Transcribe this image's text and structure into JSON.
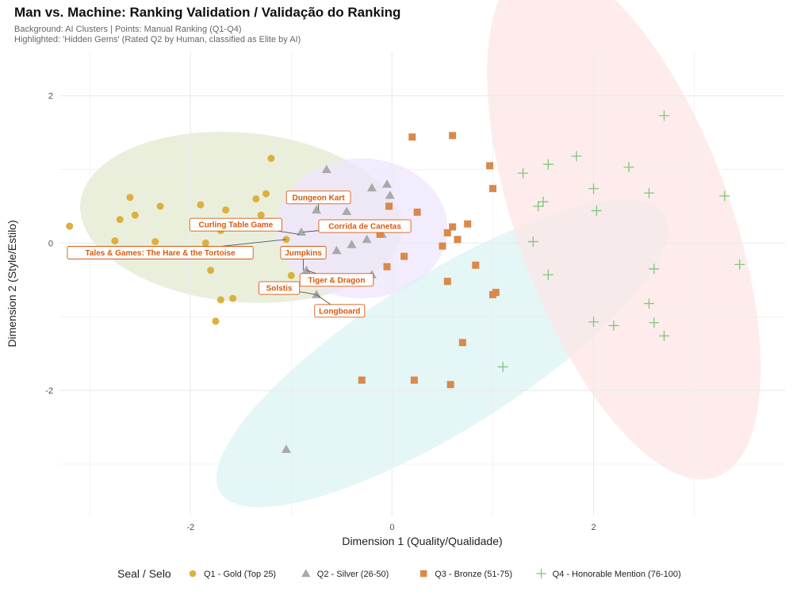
{
  "chart_data": {
    "type": "scatter",
    "title": "Man vs. Machine: Ranking Validation / Validação do Ranking",
    "subtitle": [
      "Background: AI Clusters | Points: Manual Ranking (Q1-Q4)",
      "Highlighted: 'Hidden Gems' (Rated Q2 by Human, classified as Elite by AI)"
    ],
    "xlabel": "Dimension 1 (Quality/Qualidade)",
    "ylabel": "Dimension 2 (Style/Estilo)",
    "xlim": [
      -3.3,
      3.9
    ],
    "ylim": [
      -3.7,
      2.6
    ],
    "xticks": [
      -2,
      0,
      2
    ],
    "yticks": [
      -2,
      0,
      2
    ],
    "grid": true,
    "legend": {
      "title": "Seal / Selo",
      "position": "bottom"
    },
    "clusters": [
      {
        "name": "cluster-gold",
        "color": "#e3ead0",
        "cx": -1.5,
        "cy": 0.35,
        "rx": 1.6,
        "ry": 1.15,
        "angle": -5
      },
      {
        "name": "cluster-purple",
        "color": "#efe6ff",
        "cx": -0.3,
        "cy": 0.2,
        "rx": 0.85,
        "ry": 0.95,
        "angle": 0
      },
      {
        "name": "cluster-cyan",
        "color": "#dbf3f3",
        "cx": 0.5,
        "cy": -1.5,
        "rx": 2.6,
        "ry": 1.05,
        "angle": 32
      },
      {
        "name": "cluster-red",
        "color": "#fde6e6",
        "cx": 2.3,
        "cy": 0.3,
        "rx": 2.7,
        "ry": 1.45,
        "angle": -70
      }
    ],
    "series": [
      {
        "name": "Q1 - Gold (Top 25)",
        "color": "#dbb03e",
        "marker": "circle",
        "points": [
          [
            -3.2,
            0.23
          ],
          [
            -2.6,
            0.62
          ],
          [
            -2.7,
            0.32
          ],
          [
            -2.55,
            0.38
          ],
          [
            -2.3,
            0.5
          ],
          [
            -2.75,
            0.03
          ],
          [
            -2.35,
            0.02
          ],
          [
            -1.9,
            0.52
          ],
          [
            -1.65,
            0.45
          ],
          [
            -1.7,
            0.17
          ],
          [
            -1.35,
            0.6
          ],
          [
            -1.25,
            0.67
          ],
          [
            -1.2,
            1.15
          ],
          [
            -1.3,
            0.38
          ],
          [
            -1.05,
            0.05
          ],
          [
            -1.8,
            -0.37
          ],
          [
            -1.0,
            -0.44
          ],
          [
            -1.7,
            -0.77
          ],
          [
            -1.58,
            -0.75
          ],
          [
            -1.75,
            -1.06
          ],
          [
            -1.85,
            0.0
          ]
        ]
      },
      {
        "name": "Q2 - Silver (26-50)",
        "color": "#a9a9a9",
        "marker": "triangle",
        "points": [
          [
            -0.65,
            1.0
          ],
          [
            -0.2,
            0.75
          ],
          [
            -0.05,
            0.8
          ],
          [
            -0.02,
            0.65
          ],
          [
            -0.45,
            0.43
          ],
          [
            -0.75,
            0.45
          ],
          [
            -0.9,
            0.15
          ],
          [
            -0.55,
            -0.1
          ],
          [
            -0.4,
            -0.02
          ],
          [
            -0.25,
            0.05
          ],
          [
            -0.85,
            -0.37
          ],
          [
            -0.75,
            -0.7
          ],
          [
            -1.05,
            -2.8
          ],
          [
            -0.2,
            -0.43
          ],
          [
            -0.1,
            0.12
          ]
        ]
      },
      {
        "name": "Q3 - Bronze (51-75)",
        "color": "#d9894a",
        "marker": "square",
        "points": [
          [
            0.2,
            1.44
          ],
          [
            0.6,
            1.46
          ],
          [
            0.97,
            1.05
          ],
          [
            1.0,
            0.74
          ],
          [
            -0.03,
            0.5
          ],
          [
            0.25,
            0.42
          ],
          [
            0.75,
            0.26
          ],
          [
            0.55,
            0.14
          ],
          [
            0.6,
            0.22
          ],
          [
            0.65,
            0.05
          ],
          [
            0.5,
            -0.04
          ],
          [
            0.12,
            -0.18
          ],
          [
            0.83,
            -0.3
          ],
          [
            -0.05,
            -0.32
          ],
          [
            0.55,
            -0.52
          ],
          [
            1.03,
            -0.67
          ],
          [
            1.0,
            -0.7
          ],
          [
            0.7,
            -1.35
          ],
          [
            -0.3,
            -1.86
          ],
          [
            0.22,
            -1.86
          ],
          [
            0.58,
            -1.92
          ],
          [
            -0.12,
            0.12
          ]
        ]
      },
      {
        "name": "Q4 - Honorable Mention (76-100)",
        "color": "#7ec87a",
        "marker": "plus",
        "points": [
          [
            2.7,
            1.73
          ],
          [
            1.83,
            1.18
          ],
          [
            1.55,
            1.07
          ],
          [
            2.35,
            1.03
          ],
          [
            1.3,
            0.95
          ],
          [
            2.0,
            0.74
          ],
          [
            2.55,
            0.68
          ],
          [
            3.3,
            0.64
          ],
          [
            1.5,
            0.56
          ],
          [
            1.45,
            0.5
          ],
          [
            2.03,
            0.44
          ],
          [
            1.4,
            0.02
          ],
          [
            3.45,
            -0.29
          ],
          [
            2.6,
            -0.35
          ],
          [
            1.55,
            -0.43
          ],
          [
            2.55,
            -0.82
          ],
          [
            2.6,
            -1.08
          ],
          [
            2.0,
            -1.07
          ],
          [
            2.2,
            -1.12
          ],
          [
            2.7,
            -1.26
          ],
          [
            1.1,
            -1.68
          ]
        ]
      }
    ],
    "annotations": [
      {
        "text": "Dungeon Kart",
        "label": [
          -0.73,
          0.62
        ],
        "target": [
          -0.73,
          0.45
        ]
      },
      {
        "text": "Curling Table Game",
        "label": [
          -1.55,
          0.25
        ],
        "target": [
          -0.92,
          0.12
        ]
      },
      {
        "text": "Corrida de Canetas",
        "label": [
          -0.27,
          0.23
        ],
        "target": [
          -0.88,
          0.15
        ]
      },
      {
        "text": "Tales & Games: The Hare & the Tortoise",
        "label": [
          -2.3,
          -0.13
        ],
        "target": [
          -1.05,
          0.05
        ]
      },
      {
        "text": "Jumpkins",
        "label": [
          -0.88,
          -0.13
        ],
        "target": [
          -0.88,
          -0.37
        ]
      },
      {
        "text": "Tiger & Dragon",
        "label": [
          -0.55,
          -0.5
        ],
        "target": [
          -0.85,
          -0.37
        ]
      },
      {
        "text": "Solstis",
        "label": [
          -1.12,
          -0.61
        ],
        "target": [
          -0.75,
          -0.7
        ]
      },
      {
        "text": "Longboard",
        "label": [
          -0.52,
          -0.92
        ],
        "target": [
          -0.75,
          -0.7
        ]
      }
    ]
  }
}
